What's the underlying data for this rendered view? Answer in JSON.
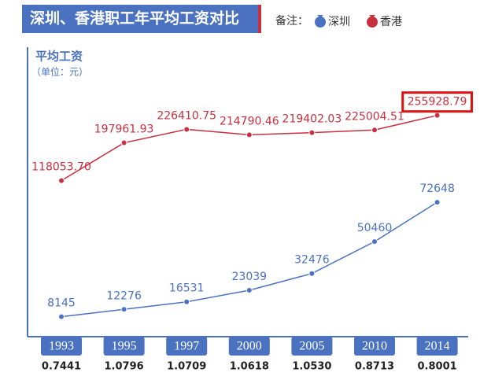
{
  "chart_data": {
    "type": "line",
    "title": "深圳、香港职工年平均工资对比",
    "legend_title": "备注：",
    "y_label": "平均工资",
    "y_unit": "（单位：元）",
    "categories": [
      "1993",
      "1995",
      "1997",
      "2000",
      "2005",
      "2010",
      "2014"
    ],
    "series": [
      {
        "name": "深圳",
        "color": "#4a72c0",
        "axis": "y2",
        "values": [
          8145,
          12276,
          16531,
          23039,
          32476,
          50460,
          72648
        ]
      },
      {
        "name": "香港",
        "color": "#c8303f",
        "values": [
          118053.7,
          197961.93,
          226410.75,
          214790.46,
          219402.03,
          225004.51,
          255928.79
        ],
        "value_labels": [
          "118053.70",
          "197961.93",
          "226410.75",
          "214790.46",
          "219402.03",
          "225004.51",
          "255928.79"
        ]
      }
    ],
    "ylim": [
      -200000,
      400000
    ],
    "y2lim": [
      0,
      160000
    ],
    "rates": [
      "0.7441",
      "1.0796",
      "1.0709",
      "1.0618",
      "1.0530",
      "0.8713",
      "0.8001"
    ]
  }
}
